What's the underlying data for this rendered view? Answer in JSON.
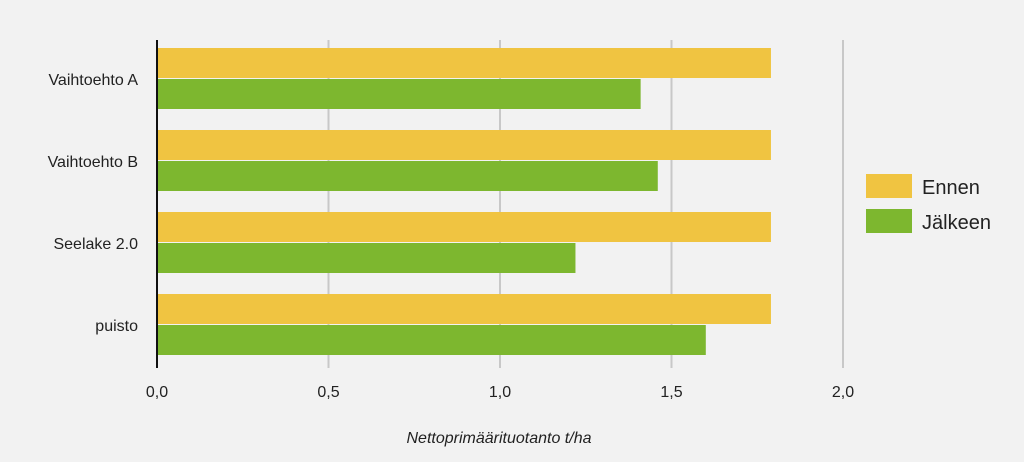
{
  "chart_data": {
    "type": "bar",
    "orientation": "horizontal",
    "categories": [
      "Vaihtoehto A",
      "Vaihtoehto B",
      "Seelake 2.0",
      "puisto"
    ],
    "series": [
      {
        "name": "Ennen",
        "values": [
          1.79,
          1.79,
          1.79,
          1.79
        ],
        "color": "#f0c441"
      },
      {
        "name": "Jälkeen",
        "values": [
          1.41,
          1.46,
          1.22,
          1.6
        ],
        "color": "#7db72f"
      }
    ],
    "xlabel": "Nettoprimäärituotanto t/ha",
    "ylabel": "",
    "xlim": [
      0,
      2.0
    ],
    "xticks": [
      0,
      0.5,
      1.0,
      1.5,
      2.0
    ],
    "xtick_labels": [
      "0,0",
      "0,5",
      "1,0",
      "1,5",
      "2,0"
    ],
    "grid": true,
    "legend_position": "right"
  },
  "colors": {
    "background": "#f2f2f2",
    "gridline": "#c8c8c8",
    "axis": "#111111"
  }
}
